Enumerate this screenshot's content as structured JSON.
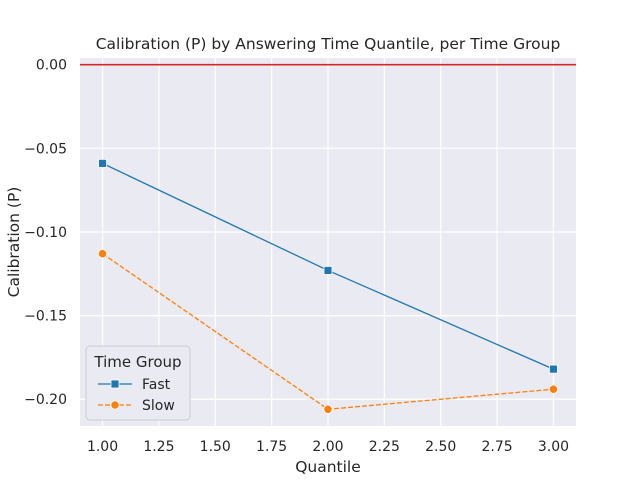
{
  "chart_data": {
    "type": "line",
    "title": "Calibration (P) by Answering Time Quantile, per Time Group",
    "xlabel": "Quantile",
    "ylabel": "Calibration (P)",
    "xlim": [
      0.9,
      3.1
    ],
    "ylim": [
      -0.216,
      0.004
    ],
    "x_ticks": [
      1.0,
      1.25,
      1.5,
      1.75,
      2.0,
      2.25,
      2.5,
      2.75,
      3.0
    ],
    "x_tick_labels": [
      "1.00",
      "1.25",
      "1.50",
      "1.75",
      "2.00",
      "2.25",
      "2.50",
      "2.75",
      "3.00"
    ],
    "y_ticks": [
      0.0,
      -0.05,
      -0.1,
      -0.15,
      -0.2
    ],
    "y_tick_labels": [
      "0.00",
      "−0.05",
      "−0.10",
      "−0.15",
      "−0.20"
    ],
    "reference_line": {
      "y": 0.0,
      "color": "#d62728"
    },
    "grid": true,
    "background": "#eaeaf2",
    "legend": {
      "title": "Time Group",
      "placement": "lower-left"
    },
    "x": [
      1.0,
      2.0,
      3.0
    ],
    "series": [
      {
        "name": "Fast",
        "values": [
          -0.059,
          -0.123,
          -0.182
        ],
        "color": "#1f77b4",
        "marker": "square",
        "linestyle": "solid"
      },
      {
        "name": "Slow",
        "values": [
          -0.113,
          -0.206,
          -0.194
        ],
        "color": "#ff7f0e",
        "marker": "circle",
        "linestyle": "dashed"
      }
    ]
  }
}
